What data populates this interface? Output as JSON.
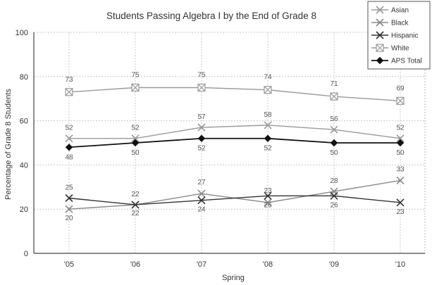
{
  "chart_data": {
    "type": "line",
    "title": "Students Passing Algebra I by the End of Grade 8",
    "xlabel": "Spring",
    "ylabel": "Percentage of Grade 8 Students",
    "categories": [
      "'05",
      "'06",
      "'07",
      "'08",
      "'09",
      "'10"
    ],
    "ylim": [
      0,
      100
    ],
    "yticks": [
      0,
      20,
      40,
      60,
      80,
      100
    ],
    "grid": true,
    "legend_position": "top-right",
    "series": [
      {
        "name": "Asian",
        "values": [
          52,
          52,
          57,
          58,
          56,
          52
        ],
        "color": "#999999",
        "marker": "x",
        "labels": [
          "52",
          "52",
          "57",
          "58",
          "56",
          "52"
        ]
      },
      {
        "name": "Black",
        "values": [
          20,
          22,
          27,
          23,
          28,
          33
        ],
        "color": "#888888",
        "marker": "x",
        "labels": [
          "20",
          "22",
          "27",
          "23",
          "28",
          "33"
        ]
      },
      {
        "name": "Hispanic",
        "values": [
          25,
          22,
          24,
          26,
          26,
          23
        ],
        "color": "#333333",
        "marker": "x",
        "labels": [
          "25",
          "22",
          "24",
          "26",
          "26",
          "23"
        ]
      },
      {
        "name": "White",
        "values": [
          73,
          75,
          75,
          74,
          71,
          69
        ],
        "color": "#999999",
        "marker": "square-x",
        "labels": [
          "73",
          "75",
          "75",
          "74",
          "71",
          "69"
        ]
      },
      {
        "name": "APS Total",
        "values": [
          48,
          50,
          52,
          52,
          50,
          50
        ],
        "color": "#111111",
        "marker": "diamond",
        "labels": [
          "48",
          "50",
          "52",
          "52",
          "50",
          "50"
        ]
      }
    ]
  }
}
